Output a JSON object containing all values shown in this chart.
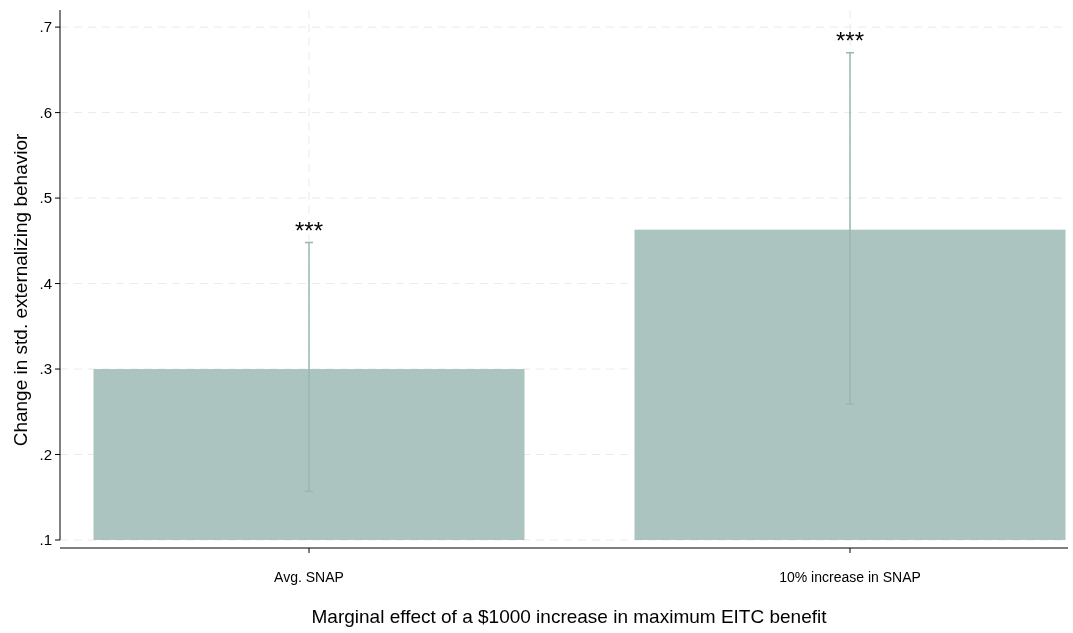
{
  "chart_data": {
    "type": "bar",
    "xlabel": "Marginal effect of a $1000 increase in maximum EITC benefit",
    "ylabel": "Change in std. externalizing behavior",
    "categories": [
      "Avg. SNAP",
      "10% increase in SNAP"
    ],
    "values": [
      0.3,
      0.463
    ],
    "errors": [
      [
        0.157,
        0.448
      ],
      [
        0.259,
        0.67
      ]
    ],
    "color": "#abc4bf",
    "ylim": [
      0.1,
      0.72
    ],
    "yticks": [
      {
        "value": 0.1,
        "label": ".1"
      },
      {
        "value": 0.2,
        "label": ".2"
      },
      {
        "value": 0.3,
        "label": ".3"
      },
      {
        "value": 0.4,
        "label": ".4"
      },
      {
        "value": 0.5,
        "label": ".5"
      },
      {
        "value": 0.6,
        "label": ".6"
      },
      {
        "value": 0.7,
        "label": ".7"
      }
    ],
    "grid": true,
    "annotations": [
      {
        "text": "***",
        "x": "Avg. SNAP",
        "y": 0.448
      },
      {
        "text": "***",
        "x": "10% increase in SNAP",
        "y": 0.67
      }
    ]
  }
}
